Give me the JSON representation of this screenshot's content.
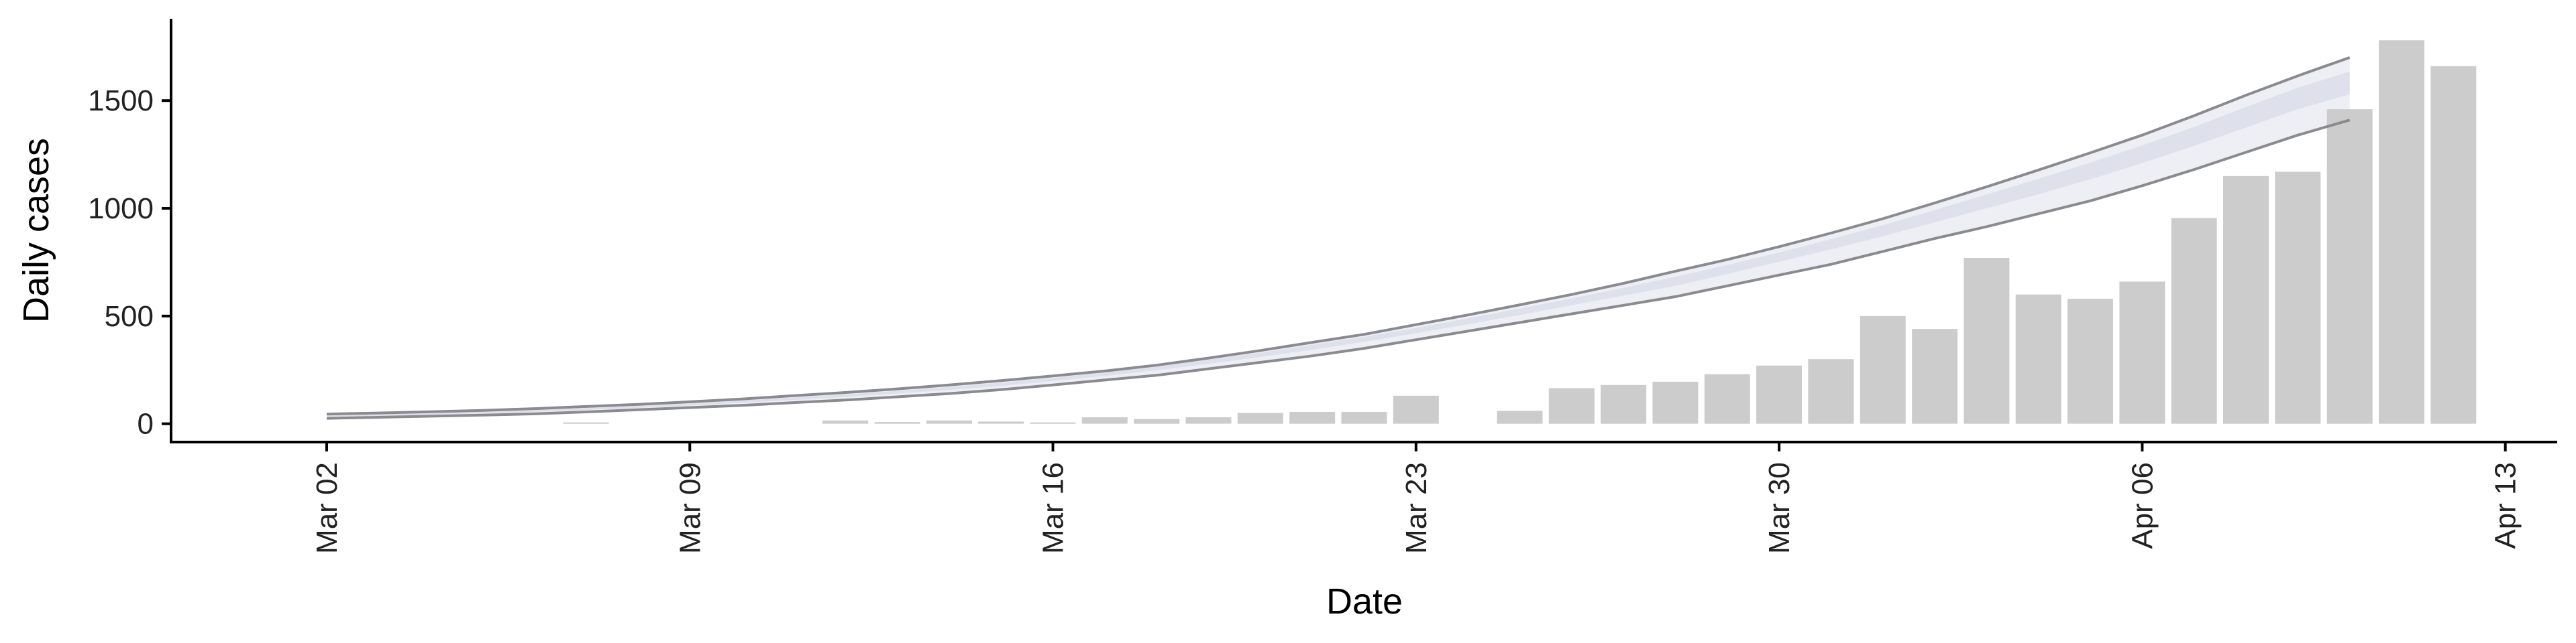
{
  "chart_data": {
    "type": "bar",
    "xlabel": "Date",
    "ylabel": "Daily cases",
    "ylim": [
      -85,
      1880
    ],
    "xlim": [
      "2020-02-28",
      "2020-04-14"
    ],
    "yticks": [
      0,
      500,
      1000,
      1500
    ],
    "xticks": [
      {
        "date": "2020-03-02",
        "label": "Mar 02"
      },
      {
        "date": "2020-03-09",
        "label": "Mar 09"
      },
      {
        "date": "2020-03-16",
        "label": "Mar 16"
      },
      {
        "date": "2020-03-23",
        "label": "Mar 23"
      },
      {
        "date": "2020-03-30",
        "label": "Mar 30"
      },
      {
        "date": "2020-04-06",
        "label": "Apr 06"
      },
      {
        "date": "2020-04-13",
        "label": "Apr 13"
      }
    ],
    "grid": false,
    "legend": "none",
    "bar_color": "#cccccc",
    "band_color": "#d8dce8",
    "line_color": "#8a8a8f",
    "bars": {
      "start_date": "2020-03-07",
      "values": [
        5,
        0,
        0,
        0,
        0,
        15,
        8,
        15,
        10,
        5,
        30,
        22,
        30,
        50,
        55,
        55,
        130,
        0,
        60,
        165,
        180,
        195,
        230,
        270,
        300,
        500,
        440,
        770,
        600,
        580,
        660,
        955,
        1150,
        1170,
        1460,
        1780,
        1660
      ]
    },
    "projection": {
      "start_date": "2020-03-02",
      "lower": [
        25,
        30,
        35,
        40,
        46,
        55,
        65,
        75,
        85,
        98,
        110,
        125,
        140,
        158,
        180,
        203,
        225,
        255,
        285,
        315,
        350,
        390,
        430,
        470,
        510,
        550,
        590,
        640,
        690,
        740,
        800,
        860,
        915,
        975,
        1035,
        1105,
        1180,
        1260,
        1340,
        1410
      ],
      "inner_lower": [
        30,
        36,
        42,
        48,
        55,
        64,
        74,
        85,
        97,
        110,
        124,
        140,
        157,
        176,
        198,
        222,
        248,
        278,
        310,
        343,
        380,
        420,
        462,
        505,
        550,
        595,
        640,
        695,
        752,
        810,
        870,
        935,
        1000,
        1065,
        1135,
        1210,
        1290,
        1375,
        1460,
        1530
      ],
      "median": [
        35,
        40,
        46,
        52,
        60,
        68,
        79,
        90,
        102,
        115,
        130,
        146,
        163,
        183,
        205,
        230,
        258,
        288,
        320,
        355,
        392,
        433,
        476,
        520,
        566,
        613,
        662,
        715,
        773,
        833,
        895,
        963,
        1031,
        1100,
        1172,
        1250,
        1333,
        1420,
        1505,
        1575
      ],
      "inner_upper": [
        40,
        45,
        51,
        57,
        65,
        73,
        84,
        96,
        108,
        122,
        137,
        153,
        171,
        191,
        213,
        238,
        266,
        297,
        330,
        366,
        403,
        445,
        489,
        535,
        582,
        631,
        683,
        737,
        795,
        857,
        922,
        992,
        1064,
        1137,
        1212,
        1292,
        1378,
        1470,
        1560,
        1635
      ],
      "upper": [
        45,
        50,
        56,
        62,
        70,
        80,
        90,
        102,
        115,
        130,
        145,
        162,
        180,
        200,
        222,
        245,
        272,
        305,
        340,
        378,
        415,
        460,
        505,
        552,
        600,
        652,
        708,
        762,
        822,
        885,
        952,
        1025,
        1100,
        1178,
        1258,
        1340,
        1430,
        1525,
        1615,
        1700
      ]
    }
  }
}
